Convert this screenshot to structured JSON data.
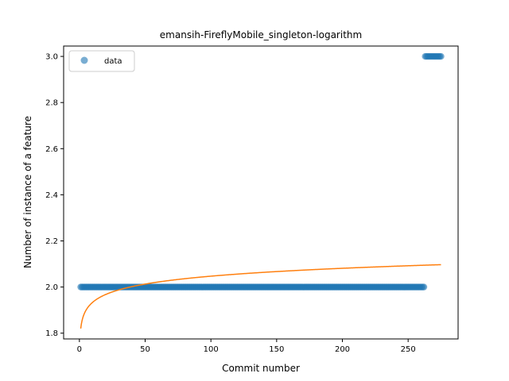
{
  "chart_data": {
    "type": "scatter",
    "title": "emansih-FireflyMobile_singleton-logarithm",
    "xlabel": "Commit number",
    "ylabel": "Number of instance of a feature",
    "xlim": [
      -12,
      288
    ],
    "ylim": [
      1.775,
      3.045
    ],
    "xticks": [
      0,
      50,
      100,
      150,
      200,
      250
    ],
    "xtick_labels": [
      "0",
      "50",
      "100",
      "150",
      "200",
      "250"
    ],
    "yticks": [
      1.8,
      2.0,
      2.2,
      2.4,
      2.6,
      2.8,
      3.0
    ],
    "ytick_labels": [
      "1.8",
      "2.0",
      "2.2",
      "2.4",
      "2.6",
      "2.8",
      "3.0"
    ],
    "grid": false,
    "legend": {
      "position": "top-left",
      "entries": [
        "data"
      ]
    },
    "series": [
      {
        "name": "data",
        "kind": "scatter",
        "color": "#1f77b4",
        "segments": [
          {
            "x_start": 1,
            "x_end": 262,
            "y": 2.0
          },
          {
            "x_start": 263,
            "x_end": 275,
            "y": 3.0
          }
        ]
      },
      {
        "kind": "line",
        "color": "#ff7f0e",
        "fit": "logarithmic",
        "x_start": 1,
        "x_end": 275,
        "y_start": 1.82,
        "y_end": 2.097
      }
    ]
  }
}
